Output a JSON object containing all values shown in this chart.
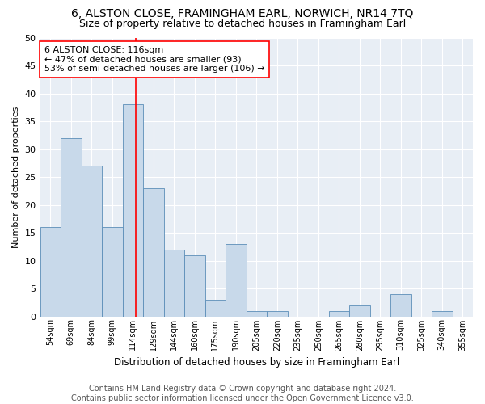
{
  "title1": "6, ALSTON CLOSE, FRAMINGHAM EARL, NORWICH, NR14 7TQ",
  "title2": "Size of property relative to detached houses in Framingham Earl",
  "xlabel": "Distribution of detached houses by size in Framingham Earl",
  "ylabel": "Number of detached properties",
  "footer1": "Contains HM Land Registry data © Crown copyright and database right 2024.",
  "footer2": "Contains public sector information licensed under the Open Government Licence v3.0.",
  "annotation_line1": "6 ALSTON CLOSE: 116sqm",
  "annotation_line2": "← 47% of detached houses are smaller (93)",
  "annotation_line3": "53% of semi-detached houses are larger (106) →",
  "categories": [
    "54sqm",
    "69sqm",
    "84sqm",
    "99sqm",
    "114sqm",
    "129sqm",
    "144sqm",
    "160sqm",
    "175sqm",
    "190sqm",
    "205sqm",
    "220sqm",
    "235sqm",
    "250sqm",
    "265sqm",
    "280sqm",
    "295sqm",
    "310sqm",
    "325sqm",
    "340sqm",
    "355sqm"
  ],
  "values": [
    16,
    32,
    27,
    16,
    38,
    23,
    12,
    11,
    3,
    13,
    1,
    1,
    0,
    0,
    1,
    2,
    0,
    4,
    0,
    1,
    0
  ],
  "bar_color": "#c8d9ea",
  "bar_edge_color": "#5b8db8",
  "ylim": [
    0,
    50
  ],
  "yticks": [
    0,
    5,
    10,
    15,
    20,
    25,
    30,
    35,
    40,
    45,
    50
  ],
  "plot_bg_color": "#e8eef5",
  "fig_bg_color": "#ffffff",
  "grid_color": "#ffffff",
  "title1_fontsize": 10,
  "title2_fontsize": 9,
  "annotation_fontsize": 8,
  "xlabel_fontsize": 8.5,
  "ylabel_fontsize": 8,
  "footer_fontsize": 7,
  "red_line_index": 4.13
}
